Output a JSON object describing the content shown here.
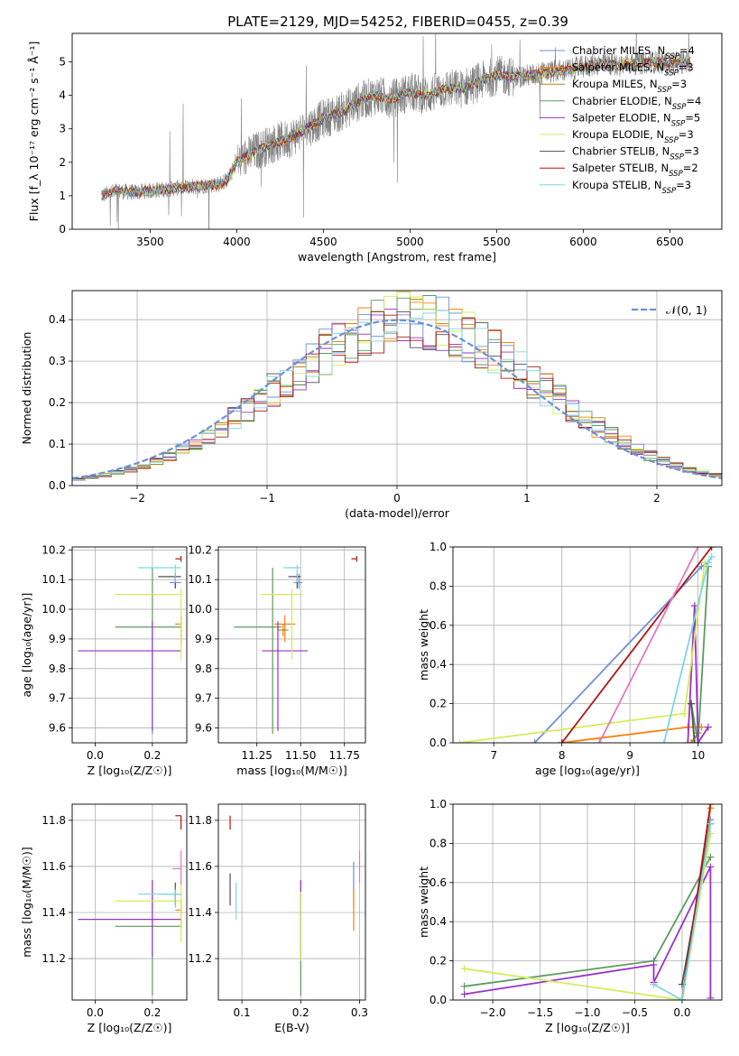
{
  "figure_title": "PLATE=2129, MJD=54252, FIBERID=0455, z=0.39",
  "models": [
    {
      "name": "Chabrier MILES",
      "nssp": "4",
      "color": "#6d90dc"
    },
    {
      "name": "Salpeter MILES",
      "nssp": "3",
      "color": "#ff7f0e"
    },
    {
      "name": "Kroupa MILES",
      "nssp": "3",
      "color": "#b8860b"
    },
    {
      "name": "Chabrier ELODIE",
      "nssp": "4",
      "color": "#5e9a5e"
    },
    {
      "name": "Salpeter ELODIE",
      "nssp": "5",
      "color": "#9b30c8"
    },
    {
      "name": "Kroupa ELODIE",
      "nssp": "3",
      "color": "#d4ec5a"
    },
    {
      "name": "Chabrier STELIB",
      "nssp": "3",
      "color": "#505050"
    },
    {
      "name": "Salpeter STELIB",
      "nssp": "2",
      "color": "#b01515"
    },
    {
      "name": "Kroupa STELIB",
      "nssp": "3",
      "color": "#7fd6e0"
    }
  ],
  "chart_data": [
    {
      "id": "spectrum",
      "type": "line",
      "xlabel": "wavelength [Angstrom, rest frame]",
      "ylabel": "Flux [f_λ 10⁻¹⁷ erg cm⁻² s⁻¹ Å⁻¹]",
      "xlim": [
        3050,
        6800
      ],
      "ylim": [
        0,
        5.85
      ],
      "xticks": [
        3500,
        4000,
        4500,
        5000,
        5500,
        6000,
        6500
      ],
      "yticks": [
        0,
        1,
        2,
        3,
        4,
        5
      ],
      "grid": false,
      "legend": "upper-right",
      "data_color": "#808080",
      "continuum": {
        "x": [
          3220,
          3300,
          3400,
          3500,
          3600,
          3700,
          3800,
          3900,
          3950,
          4000,
          4100,
          4200,
          4300,
          4400,
          4500,
          4600,
          4700,
          4800,
          4900,
          5000,
          5100,
          5200,
          5300,
          5400,
          5500,
          5600,
          5700,
          5800,
          5900,
          6000,
          6100,
          6200,
          6300,
          6400,
          6500,
          6600
        ],
        "y": [
          1.0,
          1.15,
          1.1,
          1.15,
          1.2,
          1.25,
          1.3,
          1.35,
          1.5,
          2.0,
          2.3,
          2.55,
          2.7,
          3.0,
          3.3,
          3.5,
          3.8,
          4.0,
          3.9,
          4.1,
          4.0,
          4.2,
          4.2,
          4.4,
          4.6,
          4.55,
          4.6,
          4.7,
          4.75,
          4.85,
          4.95,
          4.9,
          4.95,
          5.0,
          4.95,
          5.0
        ]
      }
    },
    {
      "id": "residuals",
      "type": "histogram",
      "xlabel": "(data-model)/error",
      "ylabel": "Normed distribution",
      "xlim": [
        -2.5,
        2.5
      ],
      "ylim": [
        0,
        0.47
      ],
      "xticks": [
        -2,
        -1,
        0,
        1,
        2
      ],
      "yticks": [
        0.0,
        0.1,
        0.2,
        0.3,
        0.4
      ],
      "grid": true,
      "legend": "upper-right",
      "reference_curve": {
        "name": "𝒩(0, 1)",
        "mean": 0,
        "sigma": 1,
        "color": "#6d90dc"
      },
      "bin_width": 0.1,
      "bin_start": -2.5
    },
    {
      "id": "age_vs_Z",
      "type": "errorbar",
      "xlabel": "Z [log₁₀(Z/Z☉)]",
      "ylabel": "age  [log₁₀(age/yr)]",
      "xlim": [
        -0.08,
        0.32
      ],
      "ylim": [
        9.55,
        10.21
      ],
      "xticks": [
        0.0,
        0.2
      ],
      "yticks": [
        9.6,
        9.7,
        9.8,
        9.9,
        10.0,
        10.1,
        10.2
      ],
      "grid": true,
      "points": [
        {
          "model": 0,
          "x": 0.28,
          "y": 10.09,
          "xerr": [
            0.02,
            0.02
          ],
          "yerr": [
            0.02,
            0.03
          ]
        },
        {
          "model": 1,
          "x": 0.3,
          "y": 9.95,
          "xerr": [
            0.02,
            0.0
          ],
          "yerr": [
            0.07,
            0.03
          ]
        },
        {
          "model": 2,
          "x": 0.3,
          "y": 9.95,
          "xerr": [
            0.0,
            0.0
          ],
          "yerr": [
            0.05,
            0.03
          ]
        },
        {
          "model": 3,
          "x": 0.2,
          "y": 9.94,
          "xerr": [
            0.13,
            0.1
          ],
          "yerr": [
            0.36,
            0.2
          ]
        },
        {
          "model": 4,
          "x": 0.2,
          "y": 9.86,
          "xerr": [
            0.26,
            0.1
          ],
          "yerr": [
            0.27,
            0.1
          ]
        },
        {
          "model": 5,
          "x": 0.3,
          "y": 10.05,
          "xerr": [
            0.23,
            0.0
          ],
          "yerr": [
            0.22,
            0.02
          ]
        },
        {
          "model": 6,
          "x": 0.28,
          "y": 10.11,
          "xerr": [
            0.06,
            0.02
          ],
          "yerr": [
            0.04,
            0.01
          ]
        },
        {
          "model": 7,
          "x": 0.3,
          "y": 10.17,
          "xerr": [
            0.02,
            0.0
          ],
          "yerr": [
            0.01,
            0.01
          ]
        },
        {
          "model": 8,
          "x": 0.28,
          "y": 10.14,
          "xerr": [
            0.13,
            0.02
          ],
          "yerr": [
            0.05,
            0.01
          ]
        }
      ]
    },
    {
      "id": "age_vs_mass",
      "type": "errorbar",
      "xlabel": "mass [log₁₀(M/M☉)]",
      "ylabel": "",
      "xlim": [
        11.03,
        11.87
      ],
      "ylim": [
        9.55,
        10.21
      ],
      "xticks": [
        11.25,
        11.5,
        11.75
      ],
      "yticks": [
        9.6,
        9.7,
        9.8,
        9.9,
        10.0,
        10.1,
        10.2
      ],
      "grid": true,
      "points": [
        {
          "model": 0,
          "x": 11.49,
          "y": 10.09,
          "xerr": [
            0.03,
            0.02
          ],
          "yerr": [
            0.02,
            0.03
          ]
        },
        {
          "model": 1,
          "x": 11.41,
          "y": 9.95,
          "xerr": [
            0.06,
            0.06
          ],
          "yerr": [
            0.06,
            0.03
          ]
        },
        {
          "model": 2,
          "x": 11.4,
          "y": 9.93,
          "xerr": [
            0.03,
            0.03
          ],
          "yerr": [
            0.02,
            0.02
          ]
        },
        {
          "model": 3,
          "x": 11.34,
          "y": 9.94,
          "xerr": [
            0.22,
            0.05
          ],
          "yerr": [
            0.36,
            0.2
          ]
        },
        {
          "model": 4,
          "x": 11.37,
          "y": 9.86,
          "xerr": [
            0.09,
            0.17
          ],
          "yerr": [
            0.27,
            0.1
          ]
        },
        {
          "model": 5,
          "x": 11.45,
          "y": 10.05,
          "xerr": [
            0.18,
            0.06
          ],
          "yerr": [
            0.22,
            0.02
          ]
        },
        {
          "model": 6,
          "x": 11.48,
          "y": 10.11,
          "xerr": [
            0.05,
            0.02
          ],
          "yerr": [
            0.04,
            0.01
          ]
        },
        {
          "model": 7,
          "x": 11.82,
          "y": 10.17,
          "xerr": [
            0.03,
            0.0
          ],
          "yerr": [
            0.01,
            0.01
          ]
        },
        {
          "model": 8,
          "x": 11.48,
          "y": 10.14,
          "xerr": [
            0.08,
            0.02
          ],
          "yerr": [
            0.05,
            0.01
          ]
        }
      ]
    },
    {
      "id": "mw_vs_age",
      "type": "line",
      "xlabel": "age  [log₁₀(age/yr)]",
      "ylabel": "mass weight",
      "xlim": [
        6.4,
        10.35
      ],
      "ylim": [
        0,
        1
      ],
      "xticks": [
        7,
        8,
        9,
        10
      ],
      "yticks": [
        0.0,
        0.2,
        0.4,
        0.6,
        0.8,
        1.0
      ],
      "grid": true,
      "series": [
        {
          "model": 0,
          "x": [
            7.6,
            10.05,
            10.15
          ],
          "y": [
            0.0,
            0.9,
            0.92
          ]
        },
        {
          "model": 1,
          "x": [
            8.0,
            9.85,
            10.05
          ],
          "y": [
            0.0,
            0.08,
            0.08
          ]
        },
        {
          "model": 2,
          "x": [
            9.9,
            10.0
          ],
          "y": [
            0.0,
            0.05
          ]
        },
        {
          "model": 3,
          "x": [
            9.9,
            10.0,
            10.15
          ],
          "y": [
            0.2,
            0.0,
            0.9
          ]
        },
        {
          "model": 4,
          "x": [
            9.85,
            9.95,
            10.0,
            10.15
          ],
          "y": [
            0.0,
            0.7,
            0.0,
            0.08
          ]
        },
        {
          "model": 5,
          "x": [
            6.5,
            9.8,
            10.1
          ],
          "y": [
            0.0,
            0.15,
            0.92
          ]
        },
        {
          "model": 6,
          "x": [
            9.9,
            9.95
          ],
          "y": [
            0.2,
            0.0
          ]
        },
        {
          "model": 7,
          "x": [
            8.0,
            10.2
          ],
          "y": [
            0.0,
            1.0
          ]
        },
        {
          "model": 8,
          "x": [
            9.5,
            10.15,
            10.2
          ],
          "y": [
            0.0,
            0.92,
            0.95
          ]
        },
        {
          "model": 9,
          "x": [
            8.55,
            10.0
          ],
          "y": [
            0.0,
            1.0
          ],
          "color": "#e377c2"
        }
      ]
    },
    {
      "id": "mass_vs_Z",
      "type": "errorbar",
      "xlabel": "Z [log₁₀(Z/Z☉)]",
      "ylabel": "mass [log₁₀(M/M☉)]",
      "xlim": [
        -0.08,
        0.32
      ],
      "ylim": [
        11.02,
        11.87
      ],
      "xticks": [
        0.0,
        0.2
      ],
      "yticks": [
        11.2,
        11.4,
        11.6,
        11.8
      ],
      "grid": true,
      "points": [
        {
          "model": 0,
          "x": 0.28,
          "y": 11.48,
          "xerr": [
            0.04,
            0.02
          ],
          "yerr": [
            0.02,
            0.02
          ]
        },
        {
          "model": 1,
          "x": 0.3,
          "y": 11.41,
          "xerr": [
            0.02,
            0.0
          ],
          "yerr": [
            0.08,
            0.05
          ]
        },
        {
          "model": 2,
          "x": 0.3,
          "y": 11.4,
          "xerr": [
            0.0,
            0.0
          ],
          "yerr": [
            0.04,
            0.04
          ]
        },
        {
          "model": 3,
          "x": 0.2,
          "y": 11.34,
          "xerr": [
            0.13,
            0.1
          ],
          "yerr": [
            0.3,
            0.2
          ]
        },
        {
          "model": 4,
          "x": 0.2,
          "y": 11.37,
          "xerr": [
            0.26,
            0.1
          ],
          "yerr": [
            0.16,
            0.17
          ]
        },
        {
          "model": 5,
          "x": 0.3,
          "y": 11.45,
          "xerr": [
            0.23,
            0.0
          ],
          "yerr": [
            0.18,
            0.1
          ]
        },
        {
          "model": 6,
          "x": 0.28,
          "y": 11.48,
          "xerr": [
            0.06,
            0.02
          ],
          "yerr": [
            0.05,
            0.05
          ]
        },
        {
          "model": 7,
          "x": 0.3,
          "y": 11.82,
          "xerr": [
            0.02,
            0.0
          ],
          "yerr": [
            0.06,
            0.0
          ]
        },
        {
          "model": 8,
          "x": 0.28,
          "y": 11.48,
          "xerr": [
            0.13,
            0.02
          ],
          "yerr": [
            0.06,
            0.02
          ]
        },
        {
          "model": 9,
          "x": 0.3,
          "y": 11.59,
          "xerr": [
            0.03,
            0.0
          ],
          "yerr": [
            0.07,
            0.08
          ],
          "color": "#e377c2"
        }
      ]
    },
    {
      "id": "mass_vs_EBV",
      "type": "errorbar",
      "xlabel": "E(B-V)",
      "ylabel": "",
      "xlim": [
        0.06,
        0.31
      ],
      "ylim": [
        11.02,
        11.87
      ],
      "xticks": [
        0.1,
        0.2,
        0.3
      ],
      "yticks": [
        11.2,
        11.4,
        11.6,
        11.8
      ],
      "grid": true,
      "points": [
        {
          "model": 0,
          "x": 0.29,
          "y": 11.52,
          "xerr": [
            0,
            0
          ],
          "yerr": [
            0.1,
            0.1
          ]
        },
        {
          "model": 1,
          "x": 0.29,
          "y": 11.41,
          "xerr": [
            0,
            0
          ],
          "yerr": [
            0.09,
            0.1
          ]
        },
        {
          "model": 3,
          "x": 0.2,
          "y": 11.34,
          "xerr": [
            0,
            0
          ],
          "yerr": [
            0.3,
            0.2
          ]
        },
        {
          "model": 4,
          "x": 0.2,
          "y": 11.37,
          "xerr": [
            0,
            0
          ],
          "yerr": [
            0.16,
            0.17
          ]
        },
        {
          "model": 5,
          "x": 0.2,
          "y": 11.39,
          "xerr": [
            0,
            0
          ],
          "yerr": [
            0.2,
            0.1
          ]
        },
        {
          "model": 6,
          "x": 0.08,
          "y": 11.5,
          "xerr": [
            0,
            0
          ],
          "yerr": [
            0.07,
            0.07
          ]
        },
        {
          "model": 7,
          "x": 0.08,
          "y": 11.79,
          "xerr": [
            0,
            0
          ],
          "yerr": [
            0.03,
            0.03
          ]
        },
        {
          "model": 8,
          "x": 0.09,
          "y": 11.45,
          "xerr": [
            0,
            0
          ],
          "yerr": [
            0.08,
            0.08
          ]
        },
        {
          "model": 9,
          "x": 0.3,
          "y": 11.6,
          "xerr": [
            0,
            0
          ],
          "yerr": [
            0.07,
            0.07
          ],
          "color": "#e377c2"
        }
      ]
    },
    {
      "id": "mw_vs_Z",
      "type": "line",
      "xlabel": "Z [log₁₀(Z/Z☉)]",
      "ylabel": "mass weight",
      "xlim": [
        -2.42,
        0.42
      ],
      "ylim": [
        0,
        1
      ],
      "xticks": [
        -2.0,
        -1.5,
        -1.0,
        -0.5,
        0.0
      ],
      "yticks": [
        0.0,
        0.2,
        0.4,
        0.6,
        0.8,
        1.0
      ],
      "grid": true,
      "series": [
        {
          "model": 0,
          "x": [
            0.0,
            0.3
          ],
          "y": [
            0.0,
            0.92
          ]
        },
        {
          "model": 1,
          "x": [
            0.0,
            0.3
          ],
          "y": [
            0.0,
            0.98
          ]
        },
        {
          "model": 3,
          "x": [
            -2.3,
            -0.3,
            0.3
          ],
          "y": [
            0.07,
            0.2,
            0.73
          ]
        },
        {
          "model": 4,
          "x": [
            -2.3,
            -0.3,
            -0.3,
            0.3,
            0.3
          ],
          "y": [
            0.03,
            0.18,
            0.09,
            0.68,
            0.01
          ]
        },
        {
          "model": 5,
          "x": [
            -2.3,
            0.0,
            0.3
          ],
          "y": [
            0.16,
            0.0,
            0.85
          ]
        },
        {
          "model": 6,
          "x": [
            0.0,
            0.3
          ],
          "y": [
            0.08,
            0.9
          ]
        },
        {
          "model": 7,
          "x": [
            0.0,
            0.3
          ],
          "y": [
            0.0,
            1.0
          ]
        },
        {
          "model": 8,
          "x": [
            -0.3,
            0.0,
            0.3
          ],
          "y": [
            0.08,
            0.0,
            0.9
          ]
        }
      ]
    }
  ]
}
